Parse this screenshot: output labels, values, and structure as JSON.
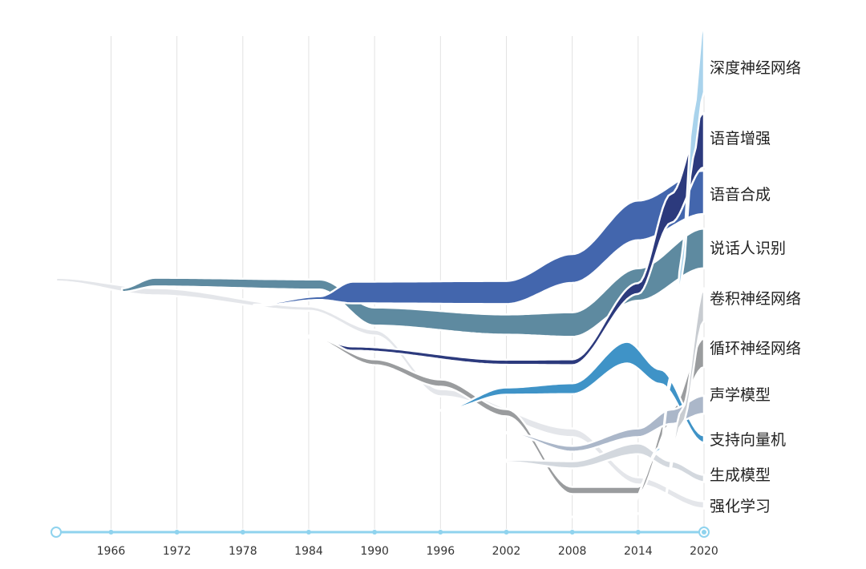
{
  "chart_data": {
    "type": "area",
    "subtype": "streamgraph",
    "x_ticks": [
      "1966",
      "1972",
      "1978",
      "1984",
      "1990",
      "1996",
      "2002",
      "2008",
      "2014",
      "2020"
    ],
    "xlim": [
      1961,
      2020
    ],
    "grid": true,
    "legend_placement": "right",
    "series": [
      {
        "name": "深度神经网络",
        "color": "#a9d3ec",
        "values": [
          [
            2009,
            0
          ],
          [
            2012,
            0.5
          ],
          [
            2014,
            1.5
          ],
          [
            2016,
            5
          ],
          [
            2017,
            12
          ],
          [
            2018,
            30
          ],
          [
            2019,
            60
          ],
          [
            2020,
            100
          ]
        ]
      },
      {
        "name": "语音增强",
        "color": "#2c3a7d",
        "values": [
          [
            1984,
            3
          ],
          [
            1988,
            6
          ],
          [
            2002,
            7
          ],
          [
            2008,
            8
          ],
          [
            2014,
            15
          ],
          [
            2017,
            40
          ],
          [
            2020,
            75
          ]
        ]
      },
      {
        "name": "语音合成",
        "color": "#4366ad",
        "values": [
          [
            1979,
            2
          ],
          [
            1985,
            5
          ],
          [
            1988,
            30
          ],
          [
            2002,
            32
          ],
          [
            2008,
            40
          ],
          [
            2014,
            55
          ],
          [
            2020,
            60
          ]
        ]
      },
      {
        "name": "说话人识别",
        "color": "#5e8aa0",
        "values": [
          [
            1967,
            5
          ],
          [
            1970,
            12
          ],
          [
            1985,
            14
          ],
          [
            1990,
            25
          ],
          [
            2002,
            28
          ],
          [
            2008,
            34
          ],
          [
            2014,
            45
          ],
          [
            2020,
            55
          ]
        ]
      },
      {
        "name": "卷积神经网络",
        "color": "#c8ccd1",
        "values": [
          [
            2008,
            0
          ],
          [
            2016,
            1
          ],
          [
            2018,
            20
          ],
          [
            2020,
            45
          ]
        ]
      },
      {
        "name": "循环神经网络",
        "color": "#9a9c9e",
        "values": [
          [
            1984,
            2
          ],
          [
            1990,
            8
          ],
          [
            1996,
            10
          ],
          [
            2002,
            10
          ],
          [
            2008,
            10
          ],
          [
            2014,
            10
          ],
          [
            2017,
            20
          ],
          [
            2020,
            40
          ]
        ]
      },
      {
        "name": "声学模型",
        "color": "#abb7c9",
        "values": [
          [
            2002,
            2
          ],
          [
            2008,
            8
          ],
          [
            2014,
            12
          ],
          [
            2017,
            20
          ],
          [
            2020,
            25
          ]
        ]
      },
      {
        "name": "支持向量机",
        "color": "#3f93c7",
        "values": [
          [
            1996,
            1
          ],
          [
            2002,
            10
          ],
          [
            2008,
            15
          ],
          [
            2013,
            30
          ],
          [
            2016,
            20
          ],
          [
            2020,
            10
          ]
        ]
      },
      {
        "name": "生成模型",
        "color": "#d3d8de",
        "values": [
          [
            2002,
            3
          ],
          [
            2008,
            10
          ],
          [
            2014,
            15
          ],
          [
            2017,
            10
          ],
          [
            2020,
            10
          ]
        ]
      },
      {
        "name": "强化学习",
        "color": "#e4e6ea",
        "values": [
          [
            1961,
            5
          ],
          [
            1970,
            10
          ],
          [
            1984,
            6
          ],
          [
            1990,
            8
          ],
          [
            1996,
            10
          ],
          [
            2008,
            12
          ],
          [
            2014,
            10
          ],
          [
            2020,
            10
          ]
        ]
      }
    ]
  }
}
